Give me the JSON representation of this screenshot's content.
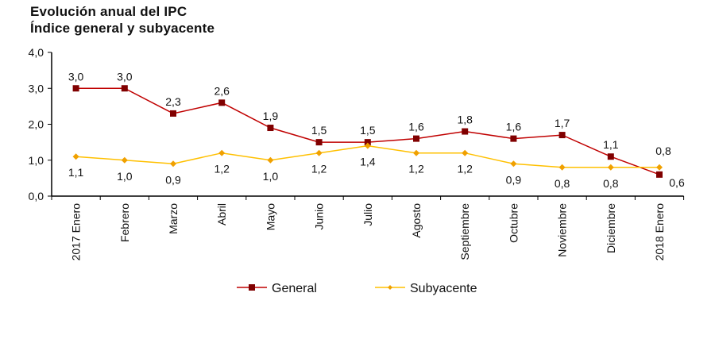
{
  "chart_data": {
    "type": "line",
    "title": "Evolución anual del IPC",
    "subtitle": "Índice general y subyacente",
    "categories": [
      "2017 Enero",
      "Febrero",
      "Marzo",
      "Abril",
      "Mayo",
      "Junio",
      "Julio",
      "Agosto",
      "Septiembre",
      "Octubre",
      "Noviembre",
      "Diciembre",
      "2018 Enero"
    ],
    "series": [
      {
        "name": "General",
        "values": [
          3.0,
          3.0,
          2.3,
          2.6,
          1.9,
          1.5,
          1.5,
          1.6,
          1.8,
          1.6,
          1.7,
          1.1,
          0.6
        ],
        "line_color": "#C00000",
        "marker_color": "#800000",
        "marker": "square"
      },
      {
        "name": "Subyacente",
        "values": [
          1.1,
          1.0,
          0.9,
          1.2,
          1.0,
          1.2,
          1.4,
          1.2,
          1.2,
          0.9,
          0.8,
          0.8,
          0.8
        ],
        "line_color": "#FFC000",
        "marker_color": "#F0A000",
        "marker": "diamond"
      }
    ],
    "yticks": [
      "0,0",
      "1,0",
      "2,0",
      "3,0",
      "4,0"
    ],
    "ylim": [
      0,
      4
    ],
    "xlabel": "",
    "ylabel": "",
    "grid": false,
    "legend": "bottom"
  }
}
